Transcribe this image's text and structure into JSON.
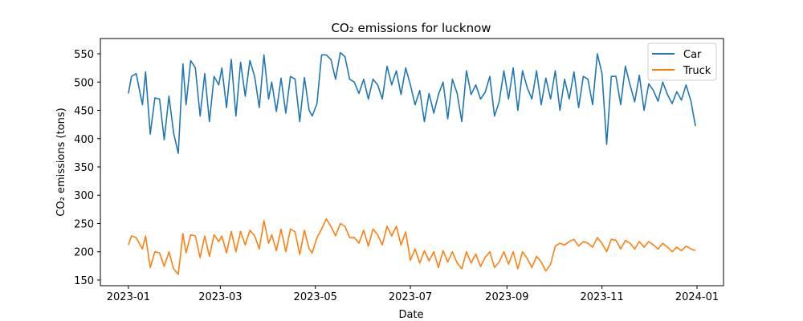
{
  "chart_data": {
    "type": "line",
    "title": "CO₂ emissions for lucknow",
    "xlabel": "Date",
    "ylabel": "CO₂ emissions (tons)",
    "xlim": [
      "2022-12-14",
      "2024-01-18"
    ],
    "ylim": [
      140,
      577
    ],
    "x_ticks": [
      "2023-01",
      "2023-03",
      "2023-05",
      "2023-07",
      "2023-09",
      "2023-11",
      "2024-01"
    ],
    "y_ticks": [
      150,
      200,
      250,
      300,
      350,
      400,
      450,
      500,
      550
    ],
    "grid": false,
    "legend_position": "top-right",
    "x": [
      "2023-01-01",
      "2023-01-03",
      "2023-01-06",
      "2023-01-10",
      "2023-01-12",
      "2023-01-15",
      "2023-01-18",
      "2023-01-21",
      "2023-01-24",
      "2023-01-27",
      "2023-01-30",
      "2023-02-02",
      "2023-02-05",
      "2023-02-07",
      "2023-02-10",
      "2023-02-13",
      "2023-02-16",
      "2023-02-19",
      "2023-02-22",
      "2023-02-25",
      "2023-02-28",
      "2023-03-02",
      "2023-03-05",
      "2023-03-08",
      "2023-03-11",
      "2023-03-14",
      "2023-03-17",
      "2023-03-20",
      "2023-03-23",
      "2023-03-26",
      "2023-03-29",
      "2023-04-01",
      "2023-04-03",
      "2023-04-06",
      "2023-04-09",
      "2023-04-12",
      "2023-04-15",
      "2023-04-18",
      "2023-04-21",
      "2023-04-24",
      "2023-04-27",
      "2023-04-29",
      "2023-05-02",
      "2023-05-05",
      "2023-05-08",
      "2023-05-11",
      "2023-05-14",
      "2023-05-17",
      "2023-05-20",
      "2023-05-23",
      "2023-05-26",
      "2023-05-29",
      "2023-06-01",
      "2023-06-04",
      "2023-06-07",
      "2023-06-10",
      "2023-06-13",
      "2023-06-16",
      "2023-06-19",
      "2023-06-22",
      "2023-06-25",
      "2023-06-28",
      "2023-07-01",
      "2023-07-04",
      "2023-07-07",
      "2023-07-10",
      "2023-07-13",
      "2023-07-16",
      "2023-07-19",
      "2023-07-22",
      "2023-07-25",
      "2023-07-28",
      "2023-07-31",
      "2023-08-03",
      "2023-08-06",
      "2023-08-09",
      "2023-08-12",
      "2023-08-15",
      "2023-08-18",
      "2023-08-21",
      "2023-08-24",
      "2023-08-27",
      "2023-08-30",
      "2023-09-02",
      "2023-09-05",
      "2023-09-08",
      "2023-09-11",
      "2023-09-14",
      "2023-09-17",
      "2023-09-20",
      "2023-09-23",
      "2023-09-26",
      "2023-09-29",
      "2023-10-02",
      "2023-10-05",
      "2023-10-08",
      "2023-10-11",
      "2023-10-14",
      "2023-10-17",
      "2023-10-20",
      "2023-10-23",
      "2023-10-26",
      "2023-10-29",
      "2023-11-01",
      "2023-11-04",
      "2023-11-07",
      "2023-11-10",
      "2023-11-13",
      "2023-11-16",
      "2023-11-19",
      "2023-11-22",
      "2023-11-25",
      "2023-11-28",
      "2023-12-01",
      "2023-12-04",
      "2023-12-07",
      "2023-12-10",
      "2023-12-13",
      "2023-12-16",
      "2023-12-19",
      "2023-12-22",
      "2023-12-25",
      "2023-12-28",
      "2023-12-31"
    ],
    "series": [
      {
        "name": "Car",
        "color": "#1f77b4",
        "values": [
          480,
          510,
          515,
          460,
          518,
          408,
          472,
          470,
          398,
          475,
          410,
          374,
          532,
          460,
          538,
          525,
          440,
          515,
          430,
          510,
          495,
          525,
          455,
          540,
          440,
          535,
          475,
          538,
          510,
          455,
          548,
          470,
          500,
          448,
          507,
          445,
          510,
          505,
          430,
          508,
          450,
          440,
          462,
          548,
          548,
          540,
          505,
          552,
          545,
          505,
          500,
          480,
          505,
          470,
          505,
          495,
          470,
          528,
          495,
          520,
          478,
          525,
          495,
          460,
          485,
          430,
          480,
          445,
          478,
          500,
          435,
          505,
          480,
          430,
          520,
          478,
          495,
          470,
          482,
          510,
          440,
          465,
          520,
          470,
          525,
          450,
          520,
          490,
          470,
          520,
          460,
          507,
          470,
          520,
          450,
          505,
          470,
          518,
          455,
          510,
          505,
          460,
          550,
          515,
          390,
          510,
          510,
          460,
          528,
          495,
          465,
          512,
          450,
          497,
          485,
          466,
          500,
          478,
          462,
          483,
          468,
          495,
          467,
          422
        ]
      },
      {
        "name": "Truck",
        "color": "#ff7f0e",
        "values": [
          212,
          228,
          225,
          205,
          228,
          172,
          200,
          198,
          174,
          200,
          170,
          160,
          232,
          198,
          230,
          228,
          190,
          228,
          192,
          230,
          218,
          228,
          198,
          236,
          200,
          236,
          212,
          238,
          228,
          205,
          255,
          215,
          230,
          202,
          240,
          200,
          240,
          235,
          195,
          238,
          205,
          198,
          225,
          240,
          258,
          245,
          228,
          250,
          245,
          225,
          225,
          215,
          238,
          210,
          240,
          230,
          212,
          245,
          228,
          245,
          212,
          235,
          185,
          205,
          180,
          202,
          184,
          200,
          172,
          202,
          182,
          200,
          180,
          170,
          200,
          180,
          196,
          174,
          190,
          200,
          172,
          182,
          200,
          178,
          200,
          170,
          200,
          188,
          172,
          192,
          182,
          166,
          178,
          210,
          215,
          212,
          218,
          222,
          210,
          218,
          215,
          208,
          225,
          215,
          200,
          222,
          220,
          205,
          220,
          215,
          205,
          218,
          208,
          218,
          212,
          205,
          215,
          208,
          200,
          208,
          202,
          210,
          205,
          202
        ]
      }
    ]
  }
}
